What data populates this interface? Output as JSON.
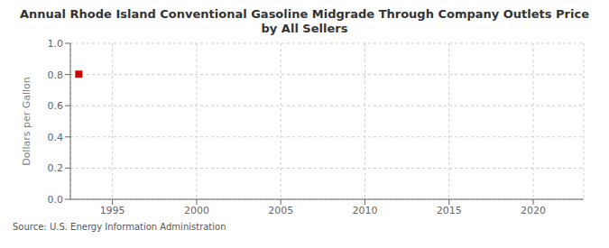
{
  "chart_data": {
    "type": "scatter",
    "title": "Annual Rhode Island Conventional Gasoline Midgrade Through Company Outlets Price by All Sellers",
    "y_label": "Dollars per Gallon",
    "annotations": [
      "Source: U.S. Energy Information Administration"
    ],
    "x": [
      1993
    ],
    "values": [
      0.802
    ],
    "color": "#cc0000",
    "marker": "square",
    "xlim": [
      1992.5,
      2023
    ],
    "ylim": [
      0.0,
      1.0
    ],
    "xticks": [
      1995,
      2000,
      2005,
      2010,
      2015,
      2020
    ],
    "yticks": [
      {
        "value": 0.0,
        "label": "0.0"
      },
      0.2,
      0.4,
      0.6,
      0.8,
      {
        "value": 1.0,
        "label": "1.0"
      }
    ],
    "grid": true
  }
}
